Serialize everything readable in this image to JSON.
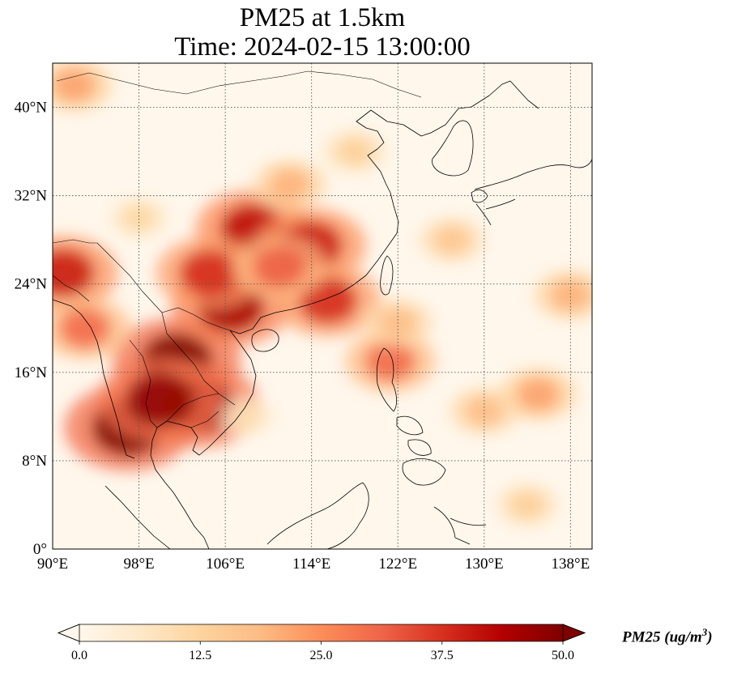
{
  "title": {
    "line1": "PM25 at 1.5km",
    "line2": "Time: 2024-02-15 13:00:00"
  },
  "map": {
    "projection": "PlateCarree",
    "lon_range": [
      90,
      140
    ],
    "lat_range": [
      0,
      44
    ],
    "lat_ticks": [
      {
        "value": 40,
        "label": "40°N"
      },
      {
        "value": 32,
        "label": "32°N"
      },
      {
        "value": 24,
        "label": "24°N"
      },
      {
        "value": 16,
        "label": "16°N"
      },
      {
        "value": 8,
        "label": "8°N"
      },
      {
        "value": 0,
        "label": "0°"
      }
    ],
    "lon_ticks": [
      {
        "value": 90,
        "label": "90°E"
      },
      {
        "value": 98,
        "label": "98°E"
      },
      {
        "value": 106,
        "label": "106°E"
      },
      {
        "value": 114,
        "label": "114°E"
      },
      {
        "value": 122,
        "label": "122°E"
      },
      {
        "value": 130,
        "label": "130°E"
      },
      {
        "value": 138,
        "label": "138°E"
      }
    ],
    "gridlines": "dotted",
    "colormap": "OrRd",
    "colormap_stops": [
      "#fff7ec",
      "#fee8c8",
      "#fdd49e",
      "#fdbb84",
      "#fc8d59",
      "#ef6548",
      "#d7301f",
      "#b30000",
      "#7f0000"
    ],
    "field_hotspots": [
      {
        "lon": 101.5,
        "lat": 17.0,
        "value": 50
      },
      {
        "lon": 97.0,
        "lat": 11.0,
        "value": 50
      },
      {
        "lon": 103.5,
        "lat": 13.0,
        "value": 48
      },
      {
        "lon": 100.0,
        "lat": 13.5,
        "value": 48
      },
      {
        "lon": 106.5,
        "lat": 22.0,
        "value": 45
      },
      {
        "lon": 108.5,
        "lat": 29.0,
        "value": 42
      },
      {
        "lon": 114.0,
        "lat": 27.5,
        "value": 40
      },
      {
        "lon": 104.5,
        "lat": 25.0,
        "value": 38
      },
      {
        "lon": 91.0,
        "lat": 25.0,
        "value": 40
      },
      {
        "lon": 115.5,
        "lat": 22.5,
        "value": 38
      },
      {
        "lon": 111.0,
        "lat": 25.5,
        "value": 32
      },
      {
        "lon": 93.0,
        "lat": 20.0,
        "value": 30
      },
      {
        "lon": 121.3,
        "lat": 17.0,
        "value": 30
      },
      {
        "lon": 122.0,
        "lat": 20.5,
        "value": 18
      },
      {
        "lon": 135.0,
        "lat": 14.0,
        "value": 22
      },
      {
        "lon": 130.0,
        "lat": 12.5,
        "value": 18
      },
      {
        "lon": 127.0,
        "lat": 28.0,
        "value": 16
      },
      {
        "lon": 112.0,
        "lat": 33.0,
        "value": 20
      },
      {
        "lon": 92.0,
        "lat": 42.0,
        "value": 22
      },
      {
        "lon": 98.0,
        "lat": 30.0,
        "value": 12
      },
      {
        "lon": 134.0,
        "lat": 4.0,
        "value": 14
      },
      {
        "lon": 118.0,
        "lat": 36.0,
        "value": 14
      },
      {
        "lon": 138.0,
        "lat": 23.0,
        "value": 20
      },
      {
        "lon": 108.0,
        "lat": 12.0,
        "value": 10
      }
    ]
  },
  "colorbar": {
    "label": "PM25 (ug/m",
    "label_sup": "3",
    "label_close": ")",
    "min": 0.0,
    "max": 50.0,
    "extend": "both",
    "ticks": [
      {
        "value": 0.0,
        "label": "0.0"
      },
      {
        "value": 12.5,
        "label": "12.5"
      },
      {
        "value": 25.0,
        "label": "25.0"
      },
      {
        "value": 37.5,
        "label": "37.5"
      },
      {
        "value": 50.0,
        "label": "50.0"
      }
    ]
  }
}
